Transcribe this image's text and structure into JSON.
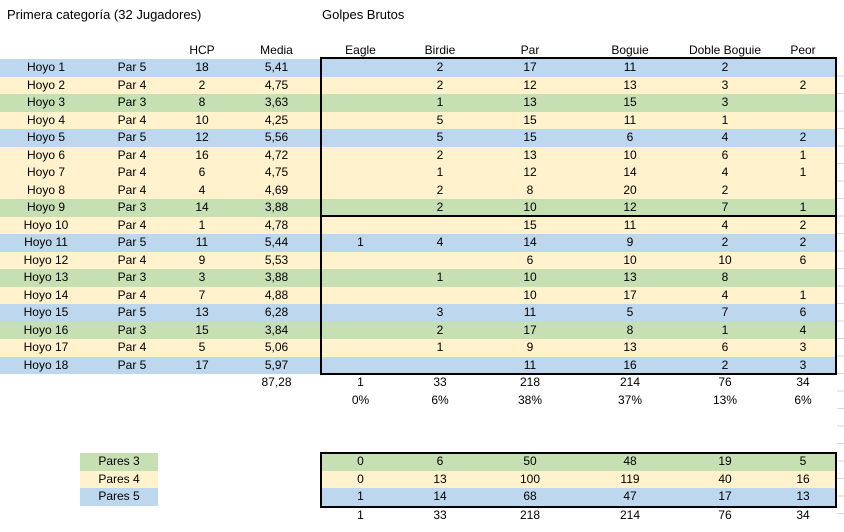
{
  "app": {
    "left_title": "Primera categoría (32 Jugadores)",
    "right_title": "Golpes Brutos"
  },
  "main_table": {
    "column_headers": [
      "HCP",
      "Media",
      "Eagle",
      "Birdie",
      "Par",
      "Boguie",
      "Doble Boguie",
      "Peor"
    ],
    "rows": [
      {
        "hoyo": "Hoyo 1",
        "par_label": "Par 5",
        "par_type": 5,
        "hcp": "18",
        "media": "5,41",
        "eagle": "",
        "birdie": "2",
        "par": "17",
        "boguie": "11",
        "doble": "2",
        "peor": ""
      },
      {
        "hoyo": "Hoyo 2",
        "par_label": "Par 4",
        "par_type": 4,
        "hcp": "2",
        "media": "4,75",
        "eagle": "",
        "birdie": "2",
        "par": "12",
        "boguie": "13",
        "doble": "3",
        "peor": "2"
      },
      {
        "hoyo": "Hoyo 3",
        "par_label": "Par 3",
        "par_type": 3,
        "hcp": "8",
        "media": "3,63",
        "eagle": "",
        "birdie": "1",
        "par": "13",
        "boguie": "15",
        "doble": "3",
        "peor": ""
      },
      {
        "hoyo": "Hoyo 4",
        "par_label": "Par 4",
        "par_type": 4,
        "hcp": "10",
        "media": "4,25",
        "eagle": "",
        "birdie": "5",
        "par": "15",
        "boguie": "11",
        "doble": "1",
        "peor": ""
      },
      {
        "hoyo": "Hoyo 5",
        "par_label": "Par 5",
        "par_type": 5,
        "hcp": "12",
        "media": "5,56",
        "eagle": "",
        "birdie": "5",
        "par": "15",
        "boguie": "6",
        "doble": "4",
        "peor": "2"
      },
      {
        "hoyo": "Hoyo 6",
        "par_label": "Par 4",
        "par_type": 4,
        "hcp": "16",
        "media": "4,72",
        "eagle": "",
        "birdie": "2",
        "par": "13",
        "boguie": "10",
        "doble": "6",
        "peor": "1"
      },
      {
        "hoyo": "Hoyo 7",
        "par_label": "Par 4",
        "par_type": 4,
        "hcp": "6",
        "media": "4,75",
        "eagle": "",
        "birdie": "1",
        "par": "12",
        "boguie": "14",
        "doble": "4",
        "peor": "1"
      },
      {
        "hoyo": "Hoyo 8",
        "par_label": "Par 4",
        "par_type": 4,
        "hcp": "4",
        "media": "4,69",
        "eagle": "",
        "birdie": "2",
        "par": "8",
        "boguie": "20",
        "doble": "2",
        "peor": ""
      },
      {
        "hoyo": "Hoyo 9",
        "par_label": "Par 3",
        "par_type": 3,
        "hcp": "14",
        "media": "3,88",
        "eagle": "",
        "birdie": "2",
        "par": "10",
        "boguie": "12",
        "doble": "7",
        "peor": "1"
      },
      {
        "hoyo": "Hoyo 10",
        "par_label": "Par 4",
        "par_type": 4,
        "hcp": "1",
        "media": "4,78",
        "eagle": "",
        "birdie": "",
        "par": "15",
        "boguie": "11",
        "doble": "4",
        "peor": "2"
      },
      {
        "hoyo": "Hoyo 11",
        "par_label": "Par 5",
        "par_type": 5,
        "hcp": "11",
        "media": "5,44",
        "eagle": "1",
        "birdie": "4",
        "par": "14",
        "boguie": "9",
        "doble": "2",
        "peor": "2"
      },
      {
        "hoyo": "Hoyo 12",
        "par_label": "Par 4",
        "par_type": 4,
        "hcp": "9",
        "media": "5,53",
        "eagle": "",
        "birdie": "",
        "par": "6",
        "boguie": "10",
        "doble": "10",
        "peor": "6"
      },
      {
        "hoyo": "Hoyo 13",
        "par_label": "Par 3",
        "par_type": 3,
        "hcp": "3",
        "media": "3,88",
        "eagle": "",
        "birdie": "1",
        "par": "10",
        "boguie": "13",
        "doble": "8",
        "peor": ""
      },
      {
        "hoyo": "Hoyo 14",
        "par_label": "Par 4",
        "par_type": 4,
        "hcp": "7",
        "media": "4,88",
        "eagle": "",
        "birdie": "",
        "par": "10",
        "boguie": "17",
        "doble": "4",
        "peor": "1"
      },
      {
        "hoyo": "Hoyo 15",
        "par_label": "Par 5",
        "par_type": 5,
        "hcp": "13",
        "media": "6,28",
        "eagle": "",
        "birdie": "3",
        "par": "11",
        "boguie": "5",
        "doble": "7",
        "peor": "6"
      },
      {
        "hoyo": "Hoyo 16",
        "par_label": "Par 3",
        "par_type": 3,
        "hcp": "15",
        "media": "3,84",
        "eagle": "",
        "birdie": "2",
        "par": "17",
        "boguie": "8",
        "doble": "1",
        "peor": "4"
      },
      {
        "hoyo": "Hoyo 17",
        "par_label": "Par 4",
        "par_type": 4,
        "hcp": "5",
        "media": "5,06",
        "eagle": "",
        "birdie": "1",
        "par": "9",
        "boguie": "13",
        "doble": "6",
        "peor": "3"
      },
      {
        "hoyo": "Hoyo 18",
        "par_label": "Par 5",
        "par_type": 5,
        "hcp": "17",
        "media": "5,97",
        "eagle": "",
        "birdie": "",
        "par": "11",
        "boguie": "16",
        "doble": "2",
        "peor": "3"
      }
    ],
    "totals": {
      "media": "87,28",
      "eagle": "1",
      "birdie": "33",
      "par": "218",
      "boguie": "214",
      "doble": "76",
      "peor": "34"
    },
    "percentages": {
      "eagle": "0%",
      "birdie": "6%",
      "par": "38%",
      "boguie": "37%",
      "doble": "13%",
      "peor": "6%"
    }
  },
  "legend": {
    "items": [
      {
        "label": "Pares 3",
        "par_type": 3,
        "color": "#C6E0B4"
      },
      {
        "label": "Pares 4",
        "par_type": 4,
        "color": "#FFF2CC"
      },
      {
        "label": "Pares 5",
        "par_type": 5,
        "color": "#BDD7EE"
      }
    ]
  },
  "summary_table": {
    "rows": [
      {
        "par_type": 3,
        "values": [
          "0",
          "6",
          "50",
          "48",
          "19",
          "5"
        ]
      },
      {
        "par_type": 4,
        "values": [
          "0",
          "13",
          "100",
          "119",
          "40",
          "16"
        ]
      },
      {
        "par_type": 5,
        "values": [
          "1",
          "14",
          "68",
          "47",
          "17",
          "13"
        ]
      }
    ],
    "totals": [
      "1",
      "33",
      "218",
      "214",
      "76",
      "34"
    ]
  },
  "colors": {
    "par3_fill": "#C6E0B4",
    "par4_fill": "#FFF2CC",
    "par5_fill": "#BDD7EE",
    "border": "#000000",
    "gridline": "#D6D6D6",
    "text": "#000000",
    "background": "#FFFFFF"
  }
}
